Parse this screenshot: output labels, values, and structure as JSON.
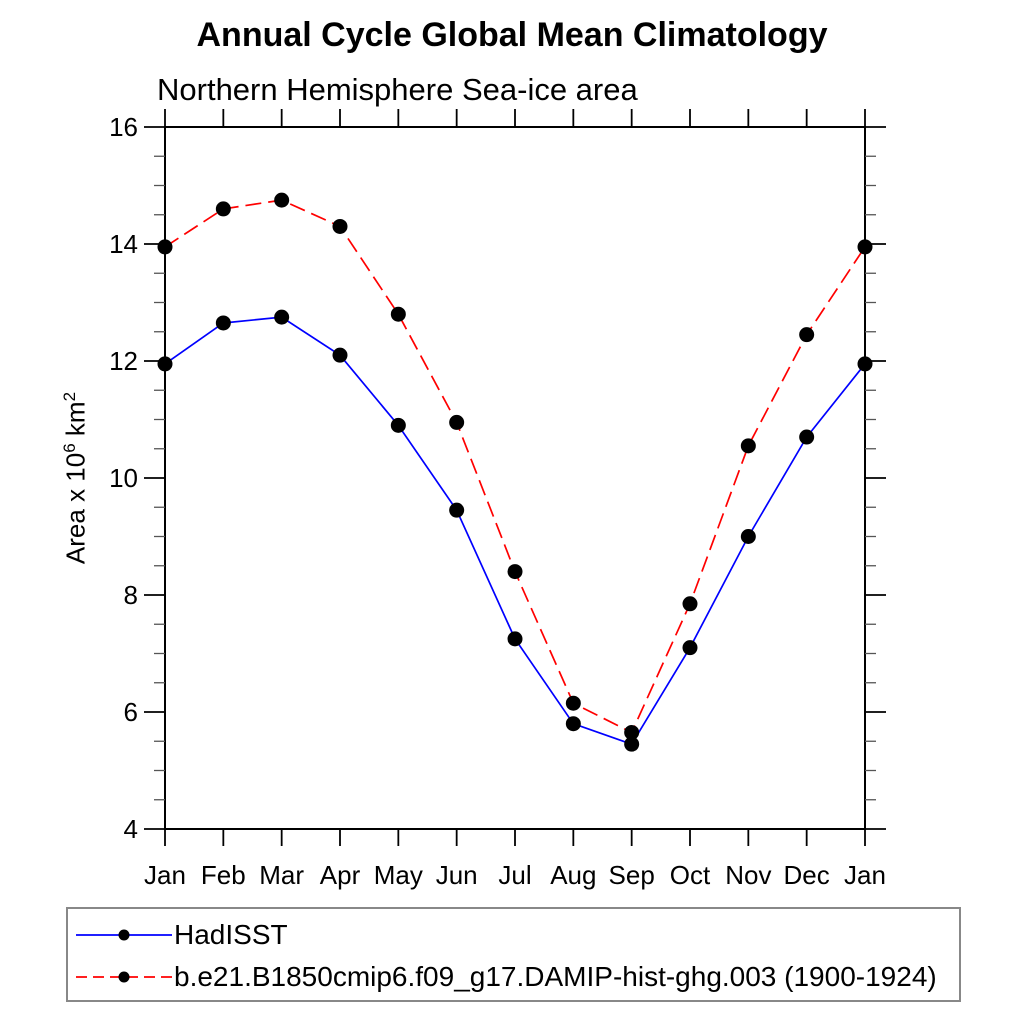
{
  "page": {
    "title": "Annual Cycle Global Mean Climatology",
    "subtitle": "Northern Hemisphere Sea-ice area"
  },
  "ylabel_parts": {
    "prefix": "Area x 10",
    "sup1": "6",
    "mid": " km",
    "sup2": "2"
  },
  "chart_data": {
    "type": "line",
    "title": "Annual Cycle Global Mean Climatology",
    "subtitle": "Northern Hemisphere Sea-ice area",
    "ylabel": "Area x 10^6 km^2",
    "xlabel": "",
    "categories": [
      "Jan",
      "Feb",
      "Mar",
      "Apr",
      "May",
      "Jun",
      "Jul",
      "Aug",
      "Sep",
      "Oct",
      "Nov",
      "Dec",
      "Jan"
    ],
    "ylim": [
      4,
      16
    ],
    "yticks": [
      4,
      6,
      8,
      10,
      12,
      14,
      16
    ],
    "y_minor_step": 0.5,
    "grid": false,
    "legend_position": "bottom-left",
    "marker_color": "#000000",
    "series": [
      {
        "name": "HadISST",
        "color": "#0000ff",
        "style": "solid",
        "marker": "circle",
        "values": [
          11.95,
          12.65,
          12.75,
          12.1,
          10.9,
          9.45,
          7.25,
          5.8,
          5.45,
          7.1,
          9.0,
          10.7,
          11.95
        ]
      },
      {
        "name": "b.e21.B1850cmip6.f09_g17.DAMIP-hist-ghg.003 (1900-1924)",
        "color": "#ff0000",
        "style": "dashed",
        "marker": "circle",
        "values": [
          13.95,
          14.6,
          14.75,
          14.3,
          12.8,
          10.95,
          8.4,
          6.15,
          5.65,
          7.85,
          10.55,
          12.45,
          13.95
        ]
      }
    ]
  },
  "legend": {
    "items": [
      {
        "label": "HadISST"
      },
      {
        "label": "b.e21.B1850cmip6.f09_g17.DAMIP-hist-ghg.003 (1900-1924)"
      }
    ]
  }
}
